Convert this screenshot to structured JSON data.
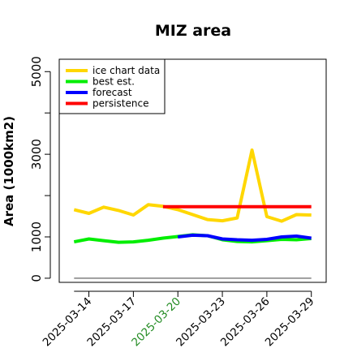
{
  "chart_data": {
    "type": "line",
    "title": "MIZ area",
    "xlabel": "",
    "ylabel": "Area (1000km2)",
    "x": [
      "2025-03-13",
      "2025-03-14",
      "2025-03-15",
      "2025-03-16",
      "2025-03-17",
      "2025-03-18",
      "2025-03-19",
      "2025-03-20",
      "2025-03-21",
      "2025-03-22",
      "2025-03-23",
      "2025-03-24",
      "2025-03-25",
      "2025-03-26",
      "2025-03-27",
      "2025-03-28",
      "2025-03-29"
    ],
    "x_tick_labels": [
      {
        "date": "2025-03-14",
        "label": "2025-03-14",
        "color": "#000000"
      },
      {
        "date": "2025-03-17",
        "label": "2025-03-17",
        "color": "#000000"
      },
      {
        "date": "2025-03-20",
        "label": "2025-03-20",
        "color": "#228b22"
      },
      {
        "date": "2025-03-23",
        "label": "2025-03-23",
        "color": "#000000"
      },
      {
        "date": "2025-03-26",
        "label": "2025-03-26",
        "color": "#000000"
      },
      {
        "date": "2025-03-29",
        "label": "2025-03-29",
        "color": "#000000"
      }
    ],
    "y_ticks": [
      0,
      1000,
      3000,
      5000
    ],
    "ylim": [
      -100,
      5300
    ],
    "xlim": [
      "2025-03-12",
      "2025-03-30"
    ],
    "grid": false,
    "legend_position": "top-left",
    "series": [
      {
        "name": "ice chart data",
        "color": "#ffd700",
        "x": [
          "2025-03-13",
          "2025-03-14",
          "2025-03-15",
          "2025-03-16",
          "2025-03-17",
          "2025-03-18",
          "2025-03-19",
          "2025-03-20",
          "2025-03-21",
          "2025-03-22",
          "2025-03-23",
          "2025-03-24",
          "2025-03-25",
          "2025-03-26",
          "2025-03-27",
          "2025-03-28",
          "2025-03-29"
        ],
        "values": [
          1660,
          1570,
          1720,
          1640,
          1530,
          1780,
          1740,
          1660,
          1540,
          1420,
          1390,
          1460,
          3100,
          1490,
          1380,
          1540,
          1530
        ]
      },
      {
        "name": "best est.",
        "color": "#00ee00",
        "x": [
          "2025-03-13",
          "2025-03-14",
          "2025-03-15",
          "2025-03-16",
          "2025-03-17",
          "2025-03-18",
          "2025-03-19",
          "2025-03-20",
          "2025-03-21",
          "2025-03-22",
          "2025-03-23",
          "2025-03-24",
          "2025-03-25",
          "2025-03-26",
          "2025-03-27",
          "2025-03-28",
          "2025-03-29"
        ],
        "values": [
          880,
          950,
          910,
          870,
          880,
          920,
          970,
          1010,
          1050,
          1030,
          930,
          890,
          880,
          910,
          940,
          930,
          960
        ]
      },
      {
        "name": "forecast",
        "color": "#0000ff",
        "x": [
          "2025-03-20",
          "2025-03-21",
          "2025-03-22",
          "2025-03-23",
          "2025-03-24",
          "2025-03-25",
          "2025-03-26",
          "2025-03-27",
          "2025-03-28",
          "2025-03-29"
        ],
        "values": [
          1000,
          1040,
          1030,
          950,
          930,
          920,
          940,
          1000,
          1020,
          970
        ]
      },
      {
        "name": "persistence",
        "color": "#ff0000",
        "x": [
          "2025-03-19",
          "2025-03-29"
        ],
        "values": [
          1730,
          1730
        ]
      },
      {
        "name": "",
        "color": "#808080",
        "x": [
          "2025-03-13",
          "2025-03-29"
        ],
        "values": [
          0,
          0
        ]
      }
    ]
  }
}
